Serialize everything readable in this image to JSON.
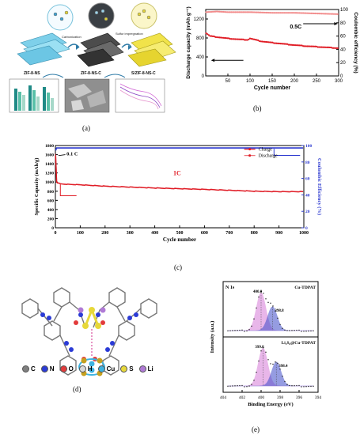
{
  "captions": {
    "a": "(a)",
    "b": "(b)",
    "c": "(c)",
    "d": "(d)",
    "e": "(e)"
  },
  "panel_a": {
    "labels": {
      "zif8": "ZIF-8-NS",
      "zif8c": "ZIF-8-NS-C",
      "szif8c": "S/ZIF-8-NS-C",
      "carbonization": "Carbonization",
      "sulfur": "Sulfur impregnation"
    }
  },
  "panel_d": {
    "legend": [
      {
        "symbol": "C",
        "color": "#7f7f7f"
      },
      {
        "symbol": "N",
        "color": "#2b3bd6"
      },
      {
        "symbol": "O",
        "color": "#e23b3b"
      },
      {
        "symbol": "H",
        "color": "#d9d9d9"
      },
      {
        "symbol": "Cu",
        "color": "#3fb3e0"
      },
      {
        "symbol": "S",
        "color": "#e7d83a"
      },
      {
        "symbol": "Li",
        "color": "#b07ad6"
      }
    ]
  },
  "chart_data": [
    {
      "id": "b",
      "type": "line",
      "xlabel": "Cycle number",
      "ylabel": "Discharge capacity (mAh g⁻¹)",
      "y2label": "Coulombic efficiency (%)",
      "annotation": "0.5C",
      "xlim": [
        0,
        300
      ],
      "ylim": [
        0,
        1400
      ],
      "y2lim": [
        0,
        100
      ],
      "xticks": [
        50,
        100,
        150,
        200,
        250,
        300
      ],
      "yticks": [
        0,
        400,
        800,
        1200
      ],
      "y2ticks": [
        0,
        20,
        40,
        60,
        80,
        100
      ],
      "grid": false,
      "series": [
        {
          "axis": "left",
          "color": "#e01b24",
          "x": [
            1,
            10,
            25,
            50,
            75,
            95,
            100,
            125,
            150,
            175,
            200,
            225,
            250,
            275,
            300
          ],
          "values": [
            900,
            840,
            820,
            790,
            770,
            760,
            790,
            730,
            700,
            675,
            650,
            630,
            615,
            600,
            585
          ]
        },
        {
          "axis": "right",
          "color": "#f28c8c",
          "x": [
            1,
            25,
            50,
            100,
            150,
            200,
            250,
            300
          ],
          "values": [
            96,
            97,
            96,
            96,
            95,
            95,
            94,
            93
          ]
        }
      ]
    },
    {
      "id": "c",
      "type": "line",
      "xlabel": "Cycle number",
      "ylabel": "Specific Capacity (mAh/g)",
      "y2label": "Coulombic Efficiency (%)",
      "annotations": [
        "0.1 C",
        "1C"
      ],
      "xlim": [
        0,
        1000
      ],
      "ylim": [
        0,
        1800
      ],
      "y2lim": [
        0,
        100
      ],
      "xticks": [
        0,
        100,
        200,
        300,
        400,
        500,
        600,
        700,
        800,
        900,
        1000
      ],
      "yticks": [
        0,
        200,
        400,
        600,
        800,
        1000,
        1200,
        1400,
        1600,
        1800
      ],
      "y2ticks": [
        0,
        20,
        40,
        60,
        80,
        100
      ],
      "legend_position": "top-right",
      "grid": false,
      "series": [
        {
          "name": "Charge",
          "axis": "left",
          "color": "#e01b24",
          "x": [
            1,
            3,
            5,
            10,
            20,
            50,
            100,
            200,
            300,
            400,
            500,
            600,
            700,
            800,
            900,
            1000
          ],
          "values": [
            1580,
            1250,
            1000,
            980,
            960,
            950,
            940,
            910,
            890,
            870,
            855,
            840,
            820,
            800,
            790,
            790
          ]
        },
        {
          "name": "Discharge",
          "axis": "left",
          "color": "#e01b24",
          "x": [
            1,
            3,
            5,
            10,
            20,
            50,
            100,
            200,
            300,
            400,
            500,
            600,
            700,
            800,
            900,
            1000
          ],
          "values": [
            1620,
            1270,
            1010,
            985,
            962,
            952,
            942,
            912,
            892,
            872,
            857,
            842,
            822,
            802,
            792,
            792
          ]
        },
        {
          "name": "",
          "axis": "right",
          "color": "#2e3bd0",
          "x": [
            1,
            5,
            50,
            100,
            500,
            1000
          ],
          "values": [
            94,
            97,
            97,
            97,
            97,
            97
          ]
        }
      ]
    },
    {
      "id": "e",
      "type": "line",
      "xlabel": "Binding Energy (eV)",
      "ylabel": "Intensity (a.u.)",
      "xlim": [
        404,
        394
      ],
      "xticks": [
        404,
        402,
        400,
        398,
        396,
        394
      ],
      "panels": [
        {
          "label_left": "N 1s",
          "label_right": "Cu-TDPAT",
          "peaks": [
            {
              "center": 400.0,
              "label": "400.0",
              "color": "#d77bd8"
            },
            {
              "center": 398.8,
              "label": "398.8",
              "color": "#3f4cc9"
            }
          ]
        },
        {
          "label_left": "",
          "label_right": "Li₂S₆@Cu-TDPAT",
          "peaks": [
            {
              "center": 399.8,
              "label": "399.8",
              "color": "#d77bd8"
            },
            {
              "center": 398.4,
              "label": "398.4",
              "color": "#3f4cc9"
            }
          ]
        }
      ]
    }
  ]
}
